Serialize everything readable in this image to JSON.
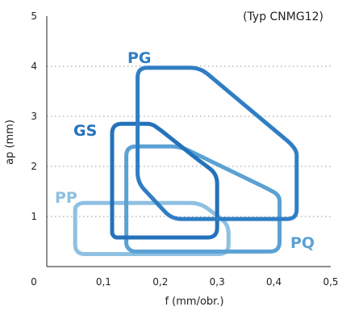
{
  "chart_data": {
    "type": "area",
    "title": "",
    "annotation": "(Typ CNMG12)",
    "xlabel": "f (mm/obr.)",
    "ylabel": "ap (mm)",
    "xlim": [
      0,
      0.5
    ],
    "ylim": [
      0,
      5
    ],
    "x_ticks": [
      "0",
      "0,1",
      "0,2",
      "0,3",
      "0,4",
      "0,5"
    ],
    "y_ticks": [
      "1",
      "2",
      "3",
      "4",
      "5"
    ],
    "y_tick_values": [
      1,
      2,
      3,
      4,
      5
    ],
    "x_tick_values": [
      0,
      0.1,
      0.2,
      0.3,
      0.4,
      0.5
    ],
    "grid": "horizontal dotted",
    "series": [
      {
        "name": "PP",
        "color": "#8ec0e2",
        "points": [
          [
            0.05,
            1.2
          ],
          [
            0.06,
            1.27
          ],
          [
            0.27,
            1.27
          ],
          [
            0.32,
            0.85
          ],
          [
            0.32,
            0.25
          ],
          [
            0.05,
            0.25
          ]
        ]
      },
      {
        "name": "PQ",
        "color": "#5ba1d3",
        "points": [
          [
            0.14,
            2.4
          ],
          [
            0.235,
            2.4
          ],
          [
            0.39,
            1.55
          ],
          [
            0.41,
            1.42
          ],
          [
            0.41,
            0.3
          ],
          [
            0.15,
            0.3
          ],
          [
            0.14,
            0.4
          ]
        ]
      },
      {
        "name": "GS",
        "color": "#2472ba",
        "points": [
          [
            0.115,
            2.85
          ],
          [
            0.185,
            2.85
          ],
          [
            0.2,
            2.73
          ],
          [
            0.27,
            2.1
          ],
          [
            0.3,
            1.85
          ],
          [
            0.3,
            0.58
          ],
          [
            0.12,
            0.58
          ],
          [
            0.115,
            0.65
          ]
        ]
      },
      {
        "name": "PG",
        "color": "#2f7ec4",
        "points": [
          [
            0.16,
            3.97
          ],
          [
            0.27,
            3.97
          ],
          [
            0.43,
            2.45
          ],
          [
            0.44,
            2.3
          ],
          [
            0.44,
            0.95
          ],
          [
            0.22,
            0.95
          ],
          [
            0.16,
            1.68
          ]
        ]
      }
    ]
  }
}
